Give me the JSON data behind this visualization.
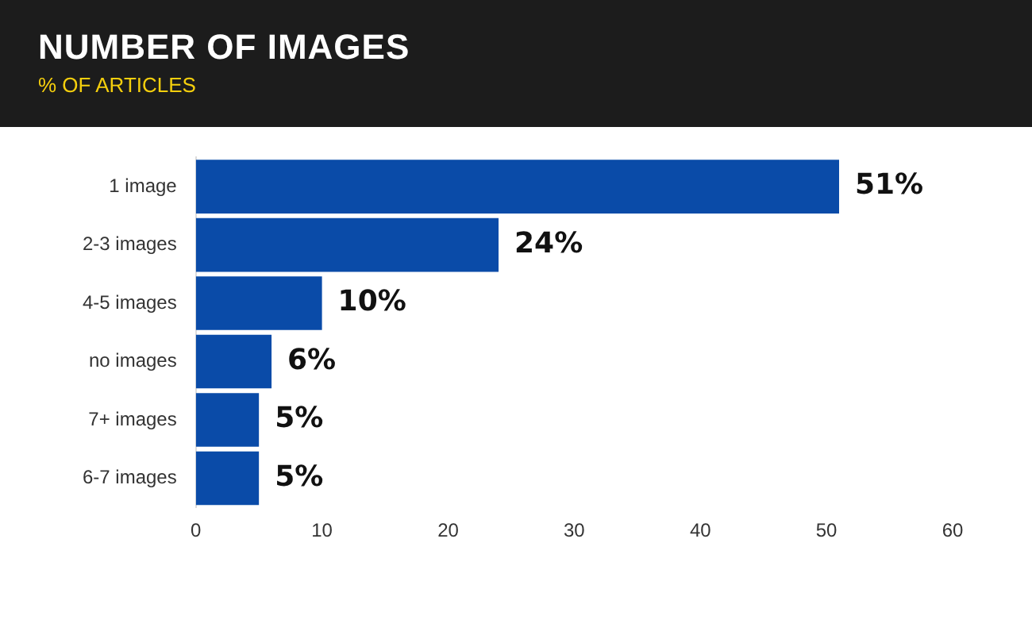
{
  "chart_data": {
    "type": "bar",
    "orientation": "horizontal",
    "title": "NUMBER OF IMAGES",
    "subtitle": "% OF ARTICLES",
    "categories": [
      "1 image",
      "2-3 images",
      "4-5 images",
      "no images",
      "7+ images",
      "6-7 images"
    ],
    "values": [
      51,
      24,
      10,
      6,
      5,
      5
    ],
    "color": "#0a4ba8",
    "value_labels": [
      "51%",
      "24%",
      "10%",
      "6%",
      "5%",
      "5%"
    ],
    "xlim": [
      0,
      60
    ],
    "xticks": [
      0,
      10,
      20,
      30,
      40,
      50,
      60
    ],
    "grid": false,
    "legend": false
  }
}
